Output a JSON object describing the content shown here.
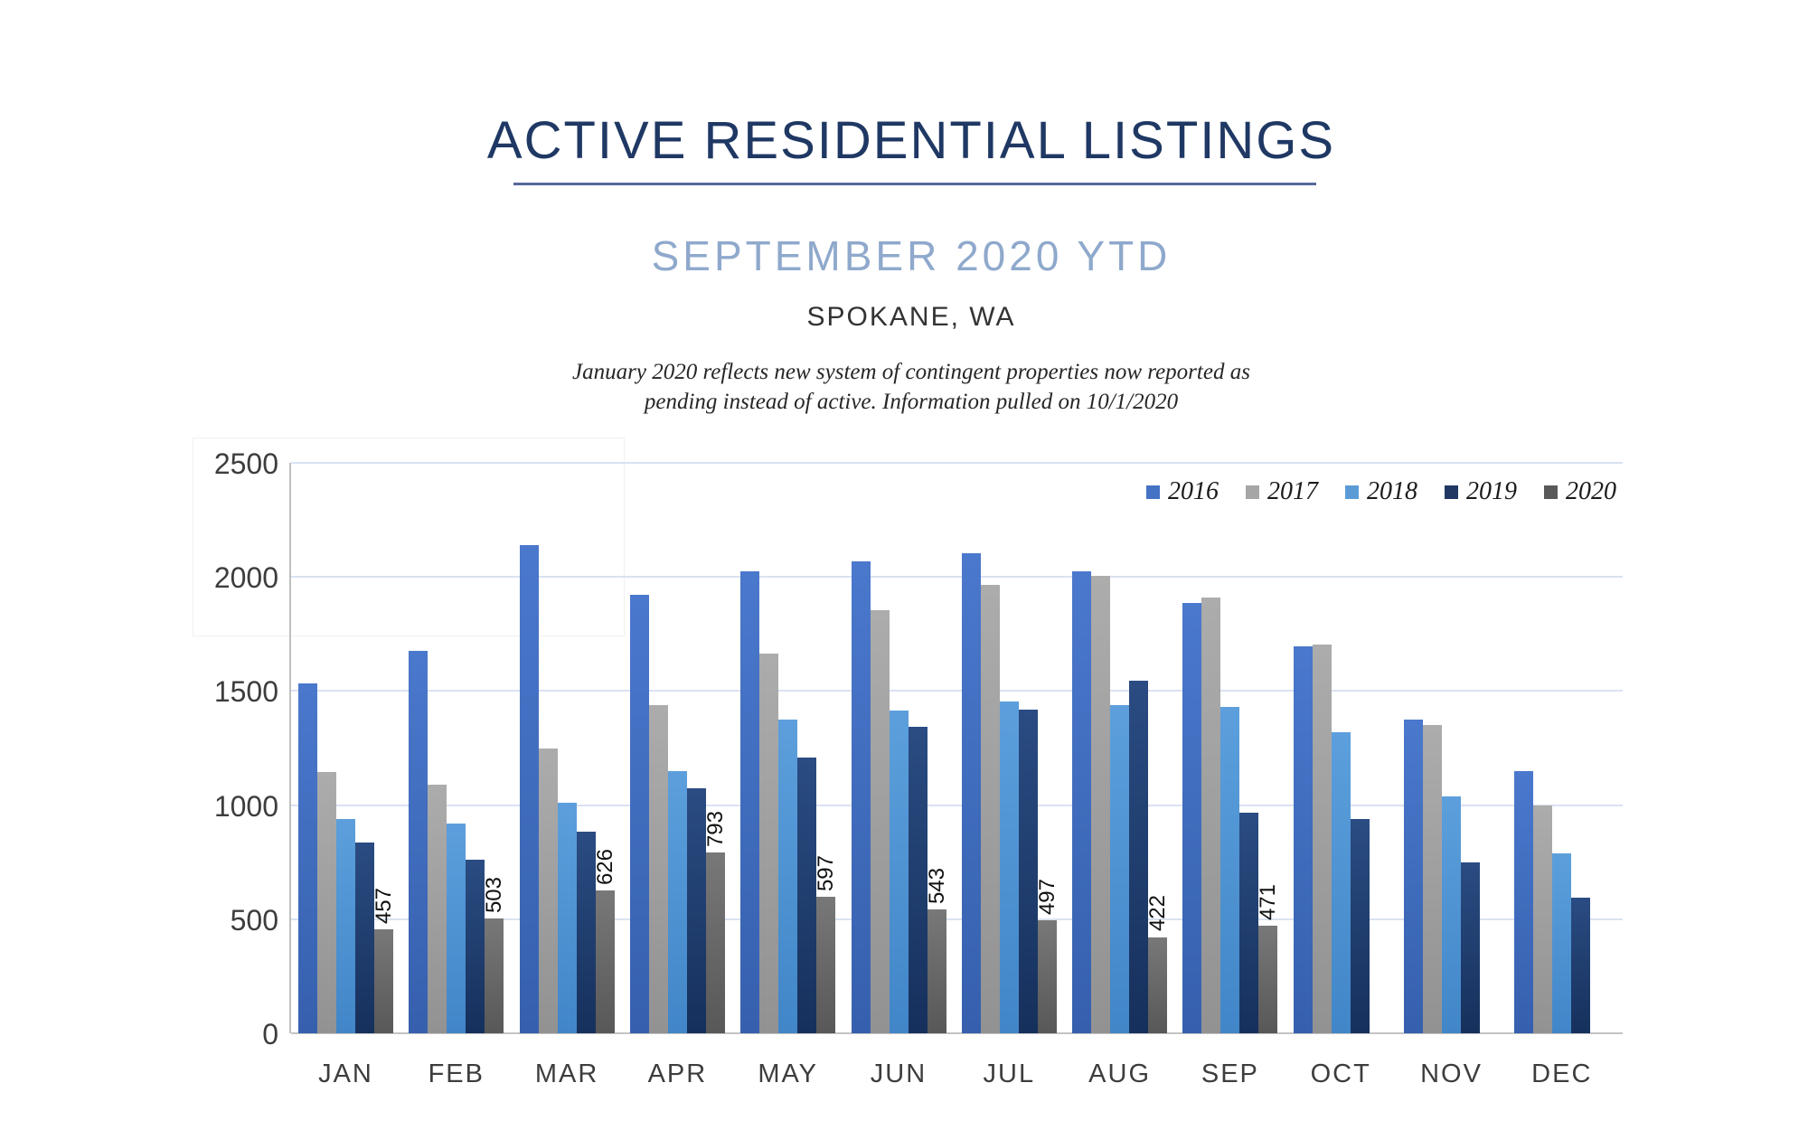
{
  "header": {
    "title": "ACTIVE RESIDENTIAL LISTINGS",
    "subtitle": "SEPTEMBER 2020 YTD",
    "location": "SPOKANE, WA",
    "note_line1": "January 2020 reflects new system of contingent properties now reported as",
    "note_line2": "pending instead of active.  Information pulled on 10/1/2020"
  },
  "chart_data": {
    "type": "bar",
    "title": "ACTIVE RESIDENTIAL LISTINGS",
    "subtitle": "SEPTEMBER 2020 YTD",
    "location": "SPOKANE, WA",
    "categories": [
      "JAN",
      "FEB",
      "MAR",
      "APR",
      "MAY",
      "JUN",
      "JUL",
      "AUG",
      "SEP",
      "OCT",
      "NOV",
      "DEC"
    ],
    "series": [
      {
        "name": "2016",
        "color": "#4472C4",
        "gradient_top": "#4A78CC",
        "gradient_bottom": "#3660AE",
        "values": [
          1535,
          1675,
          2140,
          1920,
          2025,
          2070,
          2105,
          2025,
          1885,
          1695,
          1375,
          1150
        ]
      },
      {
        "name": "2017",
        "color": "#A6A6A6",
        "gradient_top": "#ACACAC",
        "gradient_bottom": "#929292",
        "values": [
          1145,
          1090,
          1250,
          1440,
          1665,
          1855,
          1965,
          2005,
          1910,
          1705,
          1350,
          1000
        ]
      },
      {
        "name": "2018",
        "color": "#5B9BD5",
        "gradient_top": "#5C9FDC",
        "gradient_bottom": "#4186C8",
        "values": [
          940,
          920,
          1010,
          1150,
          1375,
          1415,
          1455,
          1440,
          1430,
          1320,
          1040,
          790
        ]
      },
      {
        "name": "2019",
        "color": "#1F3864",
        "gradient_top": "#2A4C82",
        "gradient_bottom": "#16305C",
        "values": [
          835,
          760,
          885,
          1075,
          1210,
          1345,
          1420,
          1545,
          965,
          940,
          750,
          595
        ]
      },
      {
        "name": "2020",
        "color": "#595959",
        "gradient_top": "#787878",
        "gradient_bottom": "#585858",
        "values": [
          457,
          503,
          626,
          793,
          597,
          543,
          497,
          422,
          471,
          null,
          null,
          null
        ],
        "data_labels_shown": true
      }
    ],
    "data_labels_2020": [
      457,
      503,
      626,
      793,
      597,
      543,
      497,
      422,
      471,
      null,
      null,
      null
    ],
    "ylim": [
      0,
      2500
    ],
    "y_ticks": [
      0,
      500,
      1000,
      1500,
      2000,
      2500
    ],
    "grid": "horizontal",
    "legend_position": "top-right",
    "colors": {
      "title_text": "#1F3864",
      "subtitle_text": "#8FA9CC",
      "underline": "#56699B",
      "gridline": "#D9E2F2",
      "axis_line": "#BFBFBF"
    }
  }
}
